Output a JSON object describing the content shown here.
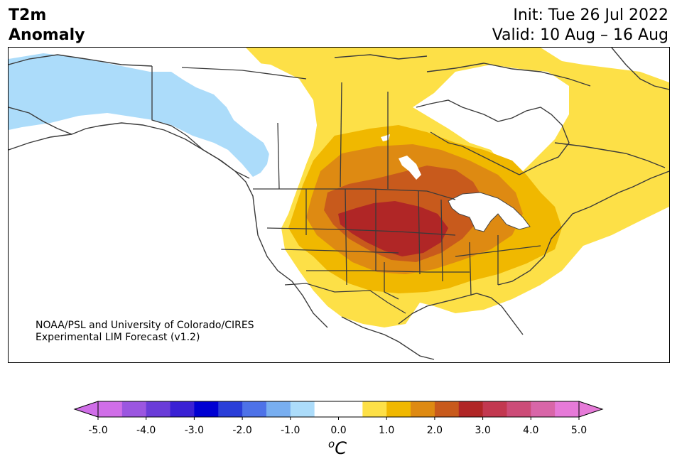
{
  "header": {
    "title_line1": "T2m",
    "title_line2": "Anomaly",
    "init": "Init: Tue 26 Jul 2022",
    "valid": "Valid: 10 Aug – 16 Aug"
  },
  "credit": {
    "line1": "NOAA/PSL and University of Colorado/CIRES",
    "line2": "Experimental LIM Forecast (v1.2)"
  },
  "colorbar": {
    "ticks": [
      "-5.0",
      "-4.0",
      "-3.0",
      "-2.0",
      "-1.0",
      "0.0",
      "1.0",
      "2.0",
      "3.0",
      "4.0",
      "5.0"
    ],
    "unit": "C",
    "unit_superscript": "o",
    "colors": [
      "#d06ee8",
      "#9b56e0",
      "#6a3cd8",
      "#3a21d4",
      "#0000d2",
      "#2a3ed8",
      "#4e72e8",
      "#78aef0",
      "#acdcfa",
      "#ffffff",
      "#ffffff",
      "#fde047",
      "#f0b800",
      "#de8a12",
      "#c85a1c",
      "#b02626",
      "#c23850",
      "#cc4c78",
      "#d866a8",
      "#e67ad8"
    ],
    "over_color": "#e67ad8",
    "under_color": "#d06ee8"
  },
  "map": {
    "region": "North America",
    "variable": "2m temperature anomaly"
  }
}
